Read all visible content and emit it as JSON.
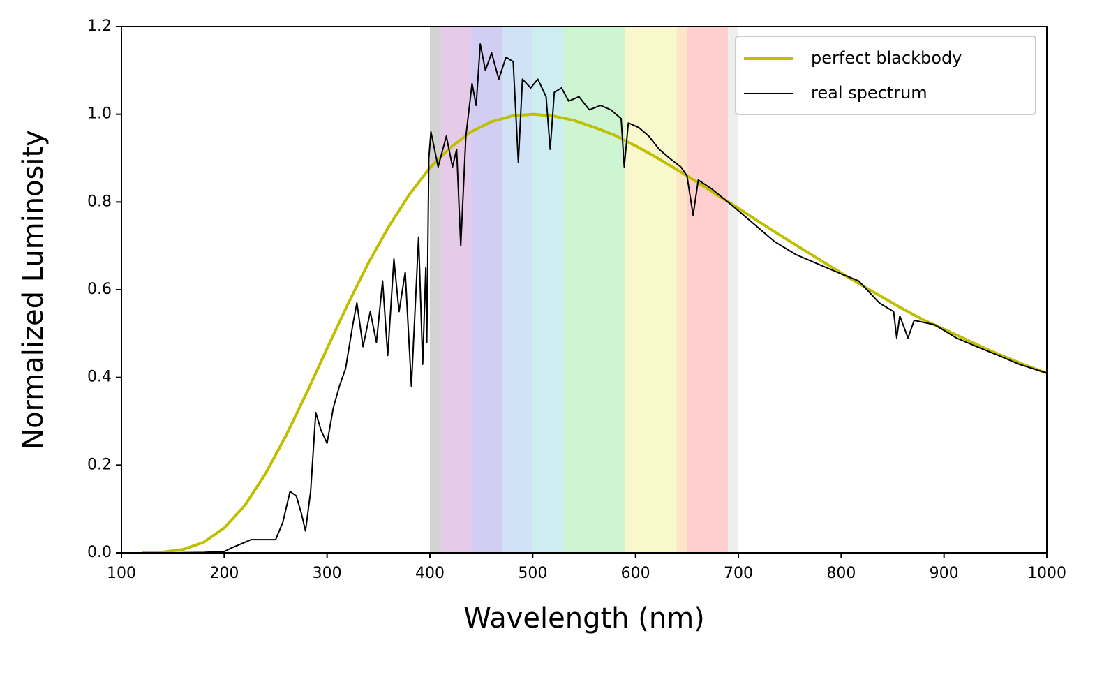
{
  "chart_data": {
    "type": "line",
    "xlabel": "Wavelength (nm)",
    "ylabel": "Normalized Luminosity",
    "xlim": [
      100,
      1000
    ],
    "ylim": [
      0,
      1.2
    ],
    "xticks": [
      100,
      200,
      300,
      400,
      500,
      600,
      700,
      800,
      900,
      1000
    ],
    "yticks": [
      {
        "value": 0,
        "label": "0.0"
      },
      0.2,
      0.4,
      0.6,
      0.8,
      {
        "value": 1,
        "label": "1.0"
      },
      1.2
    ],
    "grid": false,
    "legend": "upper right",
    "spectrum_band": {
      "bins": [
        400,
        410,
        440,
        470,
        500,
        530,
        590,
        640,
        650,
        690,
        700
      ],
      "colors": [
        "#d2d2d2",
        "#e6cbe9",
        "#d2cdf3",
        "#cfe2f6",
        "#cdeef0",
        "#cdf5d2",
        "#f8f8cc",
        "#fde6c8",
        "#ffcfcf",
        "#eeeeee"
      ]
    },
    "series": [
      {
        "name": "perfect blackbody",
        "color": "#bfbf00",
        "width": 4,
        "x": [
          120,
          140,
          160,
          180,
          200,
          220,
          240,
          260,
          280,
          300,
          320,
          340,
          360,
          380,
          400,
          420,
          440,
          460,
          480,
          500,
          520,
          540,
          560,
          580,
          600,
          620,
          640,
          660,
          680,
          700,
          720,
          740,
          760,
          780,
          800,
          820,
          840,
          860,
          880,
          900,
          920,
          940,
          960,
          980,
          1000
        ],
        "values": [
          0.0002,
          0.0017,
          0.0078,
          0.024,
          0.057,
          0.108,
          0.18,
          0.267,
          0.364,
          0.466,
          0.566,
          0.66,
          0.744,
          0.817,
          0.878,
          0.924,
          0.96,
          0.983,
          0.996,
          1,
          0.996,
          0.986,
          0.97,
          0.952,
          0.928,
          0.902,
          0.874,
          0.845,
          0.815,
          0.786,
          0.755,
          0.725,
          0.696,
          0.667,
          0.638,
          0.61,
          0.583,
          0.556,
          0.531,
          0.51,
          0.488,
          0.466,
          0.446,
          0.427,
          0.41
        ]
      },
      {
        "name": "real spectrum",
        "color": "#000000",
        "width": 2,
        "x": [
          120,
          150,
          180,
          200,
          206,
          226,
          250,
          257,
          264,
          270,
          275,
          279,
          284,
          289,
          294,
          300,
          306,
          312,
          318,
          325,
          329,
          335,
          342,
          348,
          354,
          359,
          365,
          370,
          376,
          382,
          389,
          393,
          396,
          397,
          399,
          401,
          408,
          416,
          422,
          426,
          430,
          435,
          441,
          445,
          449,
          454,
          460,
          467,
          474,
          481,
          486,
          490,
          498,
          505,
          513,
          517,
          521,
          528,
          535,
          545,
          555,
          566,
          576,
          586,
          589,
          593,
          603,
          613,
          623,
          633,
          644,
          650,
          656,
          661,
          674,
          695,
          715,
          735,
          756,
          776,
          796,
          817,
          837,
          851,
          854,
          857,
          865,
          871,
          891,
          912,
          932,
          953,
          973,
          1000
        ],
        "values": [
          0,
          0,
          0.001,
          0.003,
          0.01,
          0.03,
          0.03,
          0.07,
          0.14,
          0.13,
          0.09,
          0.05,
          0.14,
          0.32,
          0.28,
          0.25,
          0.33,
          0.38,
          0.42,
          0.52,
          0.57,
          0.47,
          0.55,
          0.48,
          0.62,
          0.45,
          0.67,
          0.55,
          0.64,
          0.38,
          0.72,
          0.43,
          0.65,
          0.48,
          0.9,
          0.96,
          0.88,
          0.95,
          0.88,
          0.92,
          0.7,
          0.95,
          1.07,
          1.02,
          1.16,
          1.1,
          1.14,
          1.08,
          1.13,
          1.12,
          0.89,
          1.08,
          1.06,
          1.08,
          1.04,
          0.92,
          1.05,
          1.06,
          1.03,
          1.04,
          1.01,
          1.02,
          1.01,
          0.99,
          0.88,
          0.98,
          0.97,
          0.95,
          0.92,
          0.9,
          0.88,
          0.86,
          0.77,
          0.85,
          0.83,
          0.79,
          0.75,
          0.71,
          0.68,
          0.66,
          0.64,
          0.62,
          0.57,
          0.55,
          0.49,
          0.54,
          0.49,
          0.53,
          0.52,
          0.49,
          0.47,
          0.45,
          0.43,
          0.41
        ]
      }
    ]
  }
}
